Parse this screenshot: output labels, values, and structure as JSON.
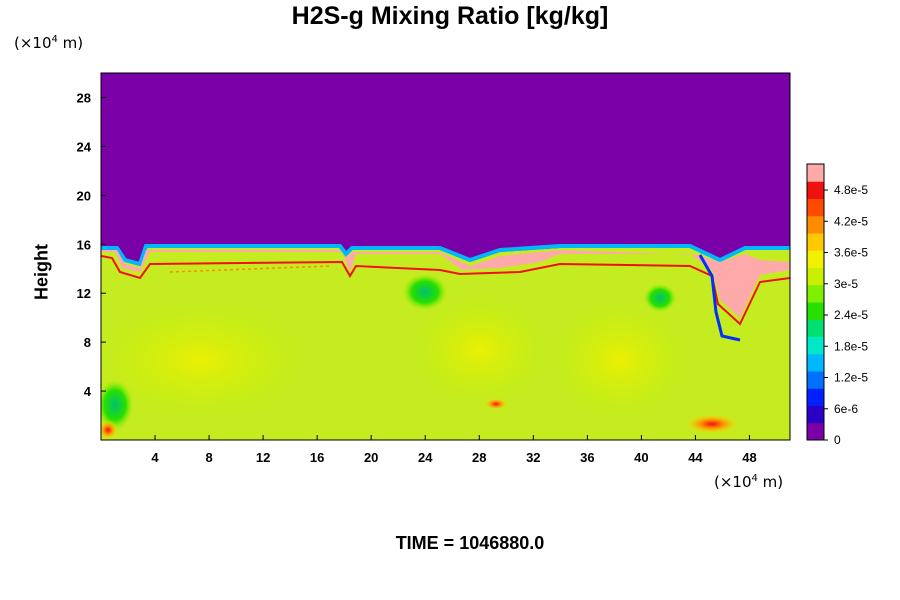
{
  "title": "H2S-g Mixing Ratio [kg/kg]",
  "time_label": "TIME = 1046880.0",
  "chart_data": {
    "type": "heatmap",
    "title": "H2S-g Mixing Ratio [kg/kg]",
    "xlabel": "",
    "ylabel": "Height",
    "x_unit_base": "(×10",
    "x_unit_exp": "4",
    "x_unit_suffix": " m)",
    "y_unit_base": "(×10",
    "y_unit_exp": "4",
    "y_unit_suffix": " m)",
    "xlim": [
      0,
      51
    ],
    "ylim": [
      0,
      30
    ],
    "x_ticks": [
      4,
      8,
      12,
      16,
      20,
      24,
      28,
      32,
      36,
      40,
      44,
      48
    ],
    "y_ticks": [
      4,
      8,
      12,
      16,
      20,
      24,
      28
    ],
    "colorbar": {
      "min": 0,
      "max": 5.3e-05,
      "tick_values": [
        0,
        6e-06,
        1.2e-05,
        1.8e-05,
        2.4e-05,
        3e-05,
        3.6e-05,
        4.2e-05,
        4.8e-05
      ],
      "tick_labels": [
        "0",
        "6e-6",
        "1.2e-5",
        "1.8e-5",
        "2.4e-5",
        "3e-5",
        "3.6e-5",
        "4.2e-5",
        "4.8e-5"
      ],
      "colors": [
        "#7a00a8",
        "#2a00c8",
        "#0020ff",
        "#0070ff",
        "#00b8ff",
        "#00e8c8",
        "#00e070",
        "#28e000",
        "#80ee00",
        "#c8f000",
        "#f0f000",
        "#ffc800",
        "#ff8c00",
        "#ff4a00",
        "#f01010",
        "#ffaaaa"
      ]
    },
    "field_notes": {
      "upper_layer_value": 0,
      "lower_layer_typical": 3.3e-05,
      "interface_height": 15.5,
      "high_band_value": 5.2e-05
    }
  }
}
